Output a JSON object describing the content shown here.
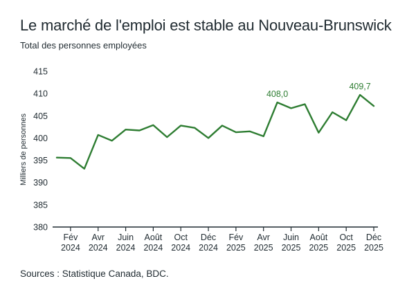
{
  "title": "Le marché de l'emploi est stable au Nouveau-Brunswick",
  "subtitle": "Total des personnes employées",
  "source": "Sources : Statistique Canada, BDC.",
  "colors": {
    "line": "#2e7d32",
    "axis": "#1f2a30",
    "text": "#1f2a30"
  },
  "chart_data": {
    "type": "line",
    "ylabel": "Milliers de personnes",
    "ylim": [
      380,
      415
    ],
    "yticks": [
      380,
      385,
      390,
      395,
      400,
      405,
      410,
      415
    ],
    "grid": false,
    "x": [
      "2024-01",
      "2024-02",
      "2024-03",
      "2024-04",
      "2024-05",
      "2024-06",
      "2024-07",
      "2024-08",
      "2024-09",
      "2024-10",
      "2024-11",
      "2024-12",
      "2025-01",
      "2025-02",
      "2025-03",
      "2025-04",
      "2025-05",
      "2025-06",
      "2025-07",
      "2025-08",
      "2025-09",
      "2025-10",
      "2025-11",
      "2025-12"
    ],
    "xtick_labels": [
      {
        "month": "Fév",
        "year": "2024"
      },
      {
        "month": "Avr",
        "year": "2024"
      },
      {
        "month": "Juin",
        "year": "2024"
      },
      {
        "month": "Août",
        "year": "2024"
      },
      {
        "month": "Oct",
        "year": "2024"
      },
      {
        "month": "Déc",
        "year": "2024"
      },
      {
        "month": "Fév",
        "year": "2025"
      },
      {
        "month": "Avr",
        "year": "2025"
      },
      {
        "month": "Juin",
        "year": "2025"
      },
      {
        "month": "Août",
        "year": "2025"
      },
      {
        "month": "Oct",
        "year": "2025"
      },
      {
        "month": "Déc",
        "year": "2025"
      }
    ],
    "series": [
      {
        "values": [
          395.6,
          395.5,
          393.1,
          400.7,
          399.4,
          401.9,
          401.7,
          402.9,
          400.2,
          402.8,
          402.3,
          400.0,
          402.8,
          401.3,
          401.5,
          400.4,
          408.0,
          406.7,
          407.6,
          401.2,
          405.8,
          404.0,
          409.7,
          407.2
        ]
      }
    ],
    "annotations": [
      {
        "x": "2025-05",
        "text": "408,0"
      },
      {
        "x": "2025-11",
        "text": "409,7"
      }
    ]
  }
}
